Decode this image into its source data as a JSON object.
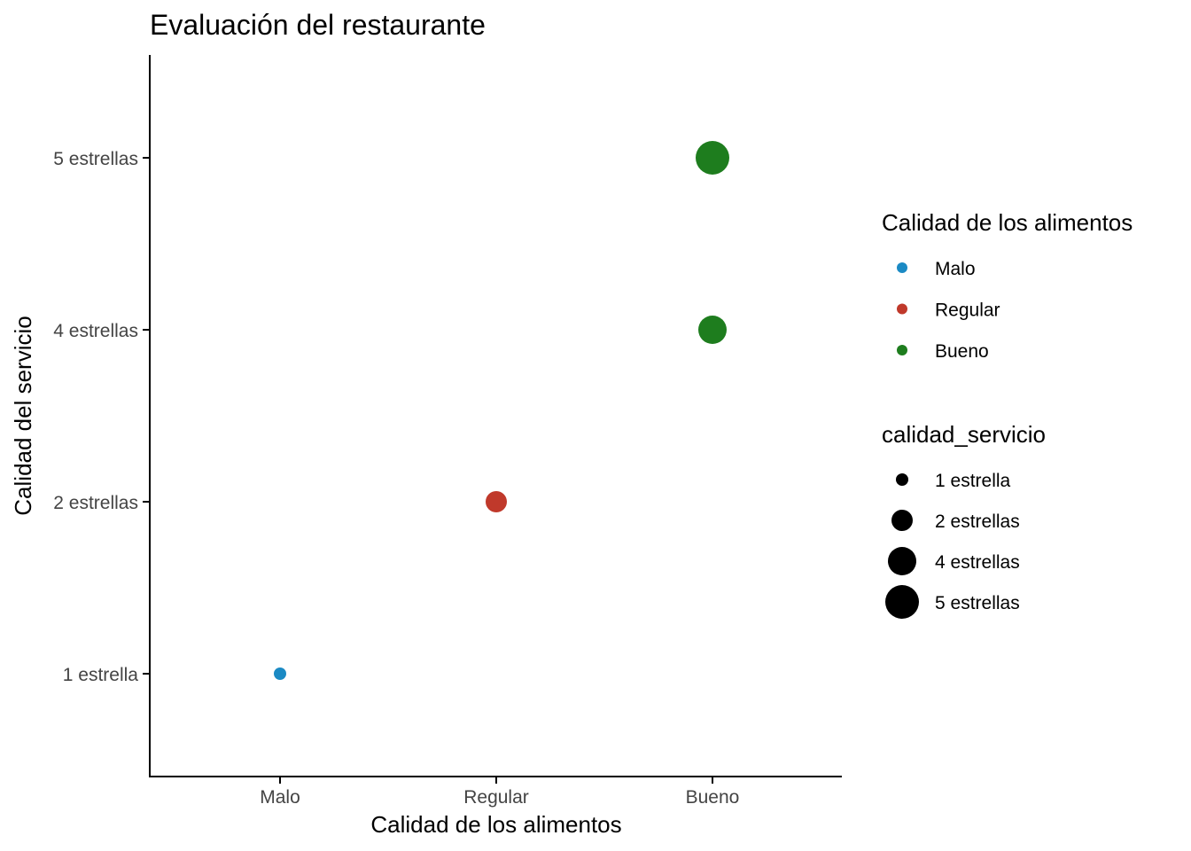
{
  "chart_data": {
    "type": "scatter",
    "title": "Evaluación del restaurante",
    "xlabel": "Calidad de los alimentos",
    "ylabel": "Calidad del servicio",
    "x_categories": [
      "Malo",
      "Regular",
      "Bueno"
    ],
    "y_categories": [
      "1 estrella",
      "2 estrellas",
      "4 estrellas",
      "5 estrellas"
    ],
    "points": [
      {
        "x": "Malo",
        "y": "1 estrella",
        "color_group": "Malo",
        "size_group": "1 estrella"
      },
      {
        "x": "Regular",
        "y": "2 estrellas",
        "color_group": "Regular",
        "size_group": "2 estrellas"
      },
      {
        "x": "Bueno",
        "y": "4 estrellas",
        "color_group": "Bueno",
        "size_group": "4 estrellas"
      },
      {
        "x": "Bueno",
        "y": "5 estrellas",
        "color_group": "Bueno",
        "size_group": "5 estrellas"
      }
    ],
    "grid": false,
    "legend_placement": "right",
    "color_legend": {
      "title": "Calidad de los alimentos",
      "entries": [
        {
          "label": "Malo",
          "color": "#1b8ac4"
        },
        {
          "label": "Regular",
          "color": "#c0392b"
        },
        {
          "label": "Bueno",
          "color": "#1e7d1e"
        }
      ]
    },
    "size_legend": {
      "title": "calidad_servicio",
      "entries": [
        "1 estrella",
        "2 estrellas",
        "4 estrellas",
        "5 estrellas"
      ]
    }
  }
}
